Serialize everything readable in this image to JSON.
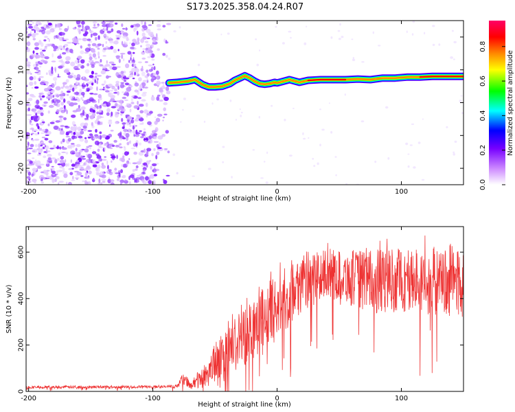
{
  "title": "S173.2025.358.04.24.R07",
  "chart_data": [
    {
      "type": "heatmap",
      "title": "S173.2025.358.04.24.R07",
      "xlabel": "Height of straight line (km)",
      "ylabel": "Frequency (Hz)",
      "xlim": [
        -202,
        150
      ],
      "ylim": [
        -25,
        25
      ],
      "xticks": [
        -200,
        -100,
        0,
        100
      ],
      "xtick_labels": [
        "-200",
        "-100",
        "0",
        "100"
      ],
      "yticks": [
        -20,
        -10,
        0,
        10,
        20
      ],
      "ytick_labels": [
        "-20",
        "-10",
        "0",
        "10",
        "20"
      ],
      "ridge": {
        "x": [
          -87,
          -80,
          -72,
          -66,
          -60,
          -55,
          -50,
          -44,
          -38,
          -34,
          -30,
          -26,
          -22,
          -18,
          -14,
          -10,
          -6,
          -2,
          0,
          5,
          10,
          14,
          18,
          25,
          35,
          45,
          55,
          65,
          75,
          85,
          95,
          105,
          115,
          125,
          135,
          150
        ],
        "y": [
          6.0,
          6.2,
          6.5,
          7.0,
          5.5,
          4.8,
          4.8,
          5.0,
          5.8,
          6.8,
          7.5,
          8.2,
          7.5,
          6.5,
          5.8,
          5.6,
          5.8,
          6.2,
          6.0,
          6.5,
          7.0,
          6.6,
          6.2,
          6.8,
          7.0,
          7.0,
          7.0,
          7.2,
          7.0,
          7.5,
          7.5,
          7.8,
          7.8,
          8.0,
          8.0,
          8.0
        ]
      },
      "colorbar": {
        "label": "Normalized spectral amplitude",
        "range": [
          0.0,
          0.95
        ],
        "ticks": [
          0.0,
          0.2,
          0.4,
          0.6,
          0.8
        ],
        "tick_labels": [
          "0.0",
          "0.2",
          "0.4",
          "0.6",
          "0.8"
        ],
        "colors": [
          "#ffffff",
          "#cc88ff",
          "#7700ff",
          "#0000ff",
          "#00ffff",
          "#00ff00",
          "#ffff00",
          "#ff8800",
          "#ff0000",
          "#ff0066"
        ]
      }
    },
    {
      "type": "line",
      "xlabel": "Height of straight line (km)",
      "ylabel": "SNR (10 * v/v)",
      "xlim": [
        -202,
        150
      ],
      "ylim": [
        0,
        710
      ],
      "xticks": [
        -200,
        -100,
        0,
        100
      ],
      "xtick_labels": [
        "-200",
        "-100",
        "0",
        "100"
      ],
      "yticks": [
        0,
        200,
        400,
        600
      ],
      "ytick_labels": [
        "0",
        "200",
        "400",
        "600"
      ],
      "series": [
        {
          "name": "SNR",
          "color": "#ee3333",
          "envelope_x": [
            -202,
            -90,
            -80,
            -75,
            -70,
            -60,
            -50,
            -40,
            -30,
            -20,
            -10,
            0,
            10,
            20,
            30,
            40,
            50,
            60,
            70,
            80,
            90,
            100,
            110,
            120,
            130,
            140,
            150
          ],
          "envelope_mean": [
            18,
            20,
            22,
            60,
            25,
            60,
            120,
            170,
            220,
            280,
            320,
            360,
            420,
            470,
            490,
            500,
            500,
            490,
            480,
            470,
            480,
            480,
            470,
            480,
            470,
            480,
            470
          ],
          "envelope_spread": [
            6,
            6,
            8,
            30,
            15,
            50,
            90,
            110,
            130,
            140,
            140,
            140,
            140,
            130,
            120,
            110,
            110,
            120,
            130,
            140,
            140,
            140,
            150,
            150,
            150,
            160,
            170
          ]
        }
      ]
    }
  ]
}
